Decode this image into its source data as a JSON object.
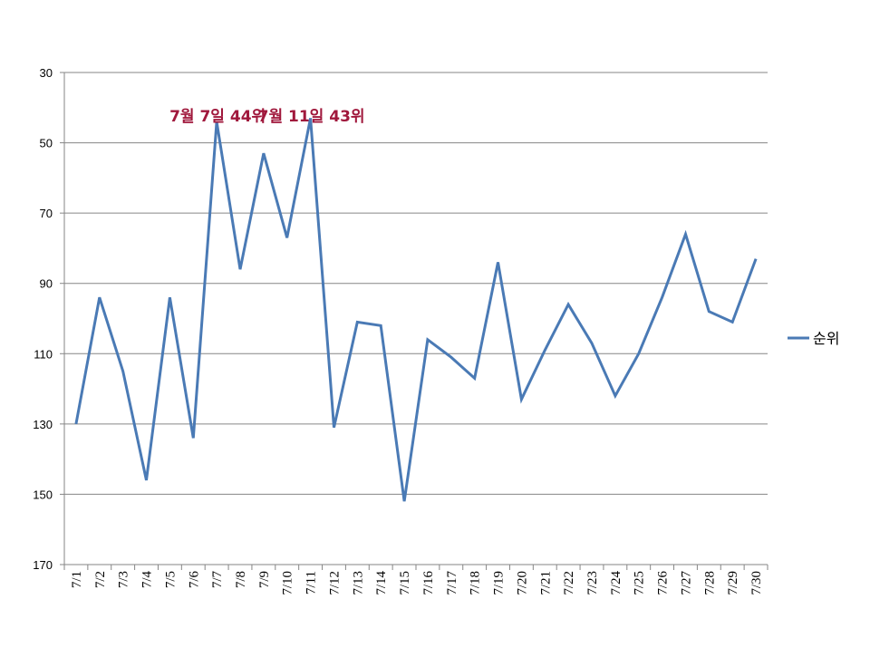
{
  "chart_data": {
    "type": "line",
    "title": "",
    "xlabel": "",
    "ylabel": "",
    "y_inverted": true,
    "ylim": [
      30,
      170
    ],
    "yticks": [
      30,
      50,
      70,
      90,
      110,
      130,
      150,
      170
    ],
    "grid": true,
    "legend_position": "right",
    "line_color": "#4a7ab5",
    "annotation_color": "#a0183c",
    "categories": [
      "7/1",
      "7/2",
      "7/3",
      "7/4",
      "7/5",
      "7/6",
      "7/7",
      "7/8",
      "7/9",
      "7/10",
      "7/11",
      "7/12",
      "7/13",
      "7/14",
      "7/15",
      "7/16",
      "7/17",
      "7/18",
      "7/19",
      "7/20",
      "7/21",
      "7/22",
      "7/23",
      "7/24",
      "7/25",
      "7/26",
      "7/27",
      "7/28",
      "7/29",
      "7/30"
    ],
    "series": [
      {
        "name": "순위",
        "values": [
          130,
          94,
          115,
          146,
          94,
          134,
          44,
          86,
          53,
          77,
          43,
          131,
          101,
          102,
          152,
          106,
          111,
          117,
          84,
          123,
          109,
          96,
          107,
          122,
          110,
          94,
          76,
          98,
          101,
          83
        ]
      }
    ],
    "annotations": [
      {
        "text": "7월 7일 44위",
        "category": "7/7",
        "value": 44
      },
      {
        "text": "7월 11일 43위",
        "category": "7/11",
        "value": 43
      }
    ]
  }
}
